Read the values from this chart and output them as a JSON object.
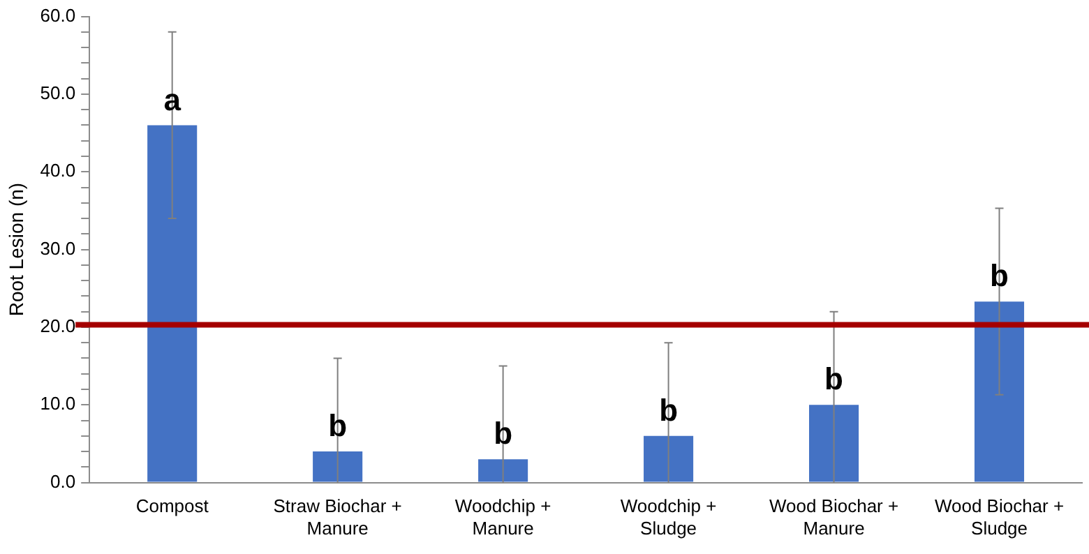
{
  "chart_data": {
    "type": "bar",
    "ylabel": "Root Lesion (n)",
    "categories": [
      "Compost",
      "Straw Biochar + Manure",
      "Woodchip + Manure",
      "Woodchip + Sludge",
      "Wood Biochar + Manure",
      "Wood Biochar + Sludge"
    ],
    "values": [
      46,
      4,
      3,
      6,
      10,
      23.3
    ],
    "errors": [
      [
        34,
        58
      ],
      [
        0,
        16
      ],
      [
        0,
        15
      ],
      [
        0,
        18
      ],
      [
        0,
        22
      ],
      [
        11.3,
        35.3
      ]
    ],
    "color": "#4472c4",
    "ylim": [
      0,
      60
    ],
    "yticks": [
      {
        "value": 0,
        "label": "0.0"
      },
      {
        "value": 2,
        "label": null
      },
      {
        "value": 4,
        "label": null
      },
      {
        "value": 6,
        "label": null
      },
      {
        "value": 8,
        "label": null
      },
      {
        "value": 10,
        "label": "10.0"
      },
      {
        "value": 12,
        "label": null
      },
      {
        "value": 14,
        "label": null
      },
      {
        "value": 16,
        "label": null
      },
      {
        "value": 18,
        "label": null
      },
      {
        "value": 20,
        "label": "20.0"
      },
      {
        "value": 22,
        "label": null
      },
      {
        "value": 24,
        "label": null
      },
      {
        "value": 26,
        "label": null
      },
      {
        "value": 28,
        "label": null
      },
      {
        "value": 30,
        "label": "30.0"
      },
      {
        "value": 32,
        "label": null
      },
      {
        "value": 34,
        "label": null
      },
      {
        "value": 36,
        "label": null
      },
      {
        "value": 38,
        "label": null
      },
      {
        "value": 40,
        "label": "40.0"
      },
      {
        "value": 42,
        "label": null
      },
      {
        "value": 44,
        "label": null
      },
      {
        "value": 46,
        "label": null
      },
      {
        "value": 48,
        "label": null
      },
      {
        "value": 50,
        "label": "50.0"
      },
      {
        "value": 52,
        "label": null
      },
      {
        "value": 54,
        "label": null
      },
      {
        "value": 56,
        "label": null
      },
      {
        "value": 58,
        "label": null
      },
      {
        "value": 60,
        "label": "60.0"
      }
    ],
    "ref_lines": [
      {
        "axis": "y",
        "value": 20.3,
        "color": "#a50000"
      }
    ],
    "annotations": [
      {
        "text": "a",
        "x": "Compost",
        "y": 46
      },
      {
        "text": "b",
        "x": "Straw Biochar + Manure",
        "y": 4
      },
      {
        "text": "b",
        "x": "Woodchip + Manure",
        "y": 3
      },
      {
        "text": "b",
        "x": "Woodchip + Sludge",
        "y": 6
      },
      {
        "text": "b",
        "x": "Wood Biochar + Manure",
        "y": 10
      },
      {
        "text": "b",
        "x": "Wood Biochar + Sludge",
        "y": 23.3
      }
    ],
    "grid": false,
    "legend": false
  }
}
